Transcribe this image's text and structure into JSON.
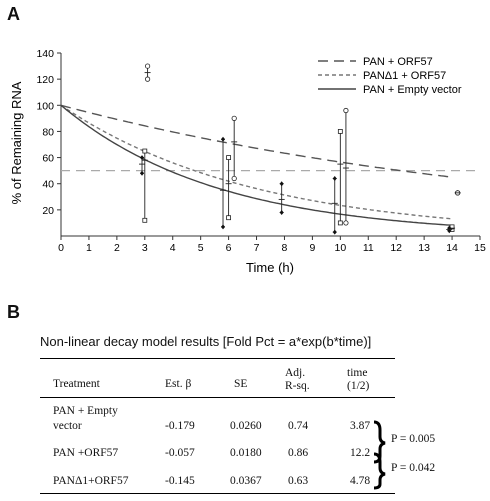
{
  "panel_a_label": "A",
  "panel_b_label": "B",
  "chart_data": {
    "type": "line",
    "xlabel": "Time (h)",
    "ylabel": "% of Remaining RNA",
    "xlim": [
      0,
      15
    ],
    "ylim": [
      0,
      140
    ],
    "xticks": [
      "0",
      "1",
      "2",
      "3",
      "4",
      "5",
      "6",
      "7",
      "8",
      "9",
      "10",
      "11",
      "12",
      "13",
      "14",
      "15"
    ],
    "yticks": [
      "20",
      "40",
      "60",
      "80",
      "100",
      "120",
      "140"
    ],
    "legend_position": "top-right",
    "reference_line": {
      "y": 50,
      "style": "dashed",
      "color": "#aaaaaa"
    },
    "series": [
      {
        "name": "PAN + ORF57",
        "style": "long-dash",
        "color": "#555555",
        "fit_decay_rate": -0.057,
        "points": [
          {
            "x": 3.1,
            "y": 125,
            "lo": 120,
            "hi": 130,
            "marker": "circle"
          },
          {
            "x": 6.2,
            "y": 72,
            "lo": 44,
            "hi": 90,
            "marker": "circle"
          },
          {
            "x": 10.2,
            "y": 52,
            "lo": 10,
            "hi": 96,
            "marker": "circle"
          },
          {
            "x": 14.2,
            "y": 33,
            "lo": 33,
            "hi": 33,
            "marker": "circle"
          }
        ]
      },
      {
        "name": "PANΔ1 + ORF57",
        "style": "short-dash",
        "color": "#777777",
        "fit_decay_rate": -0.145,
        "points": [
          {
            "x": 3.0,
            "y": 58,
            "lo": 12,
            "hi": 65,
            "marker": "square"
          },
          {
            "x": 6.0,
            "y": 40,
            "lo": 14,
            "hi": 60,
            "marker": "square"
          },
          {
            "x": 10.0,
            "y": 55,
            "lo": 10,
            "hi": 80,
            "marker": "square"
          },
          {
            "x": 14.0,
            "y": 6,
            "lo": 5,
            "hi": 7,
            "marker": "square"
          }
        ]
      },
      {
        "name": "PAN + Empty vector",
        "style": "solid",
        "color": "#444444",
        "fit_decay_rate": -0.179,
        "points": [
          {
            "x": 2.9,
            "y": 55,
            "lo": 48,
            "hi": 60,
            "marker": "diamond"
          },
          {
            "x": 5.8,
            "y": 35,
            "lo": 7,
            "hi": 74,
            "marker": "diamond"
          },
          {
            "x": 7.9,
            "y": 28,
            "lo": 18,
            "hi": 40,
            "marker": "diamond"
          },
          {
            "x": 9.8,
            "y": 25,
            "lo": 3,
            "hi": 44,
            "marker": "diamond"
          },
          {
            "x": 13.9,
            "y": 5,
            "lo": 4,
            "hi": 6,
            "marker": "diamond"
          }
        ]
      }
    ]
  },
  "table": {
    "title": "Non-linear decay model results [Fold Pct = a*exp(b*time)]",
    "headers": {
      "treatment": "Treatment",
      "beta": "Est. β",
      "se": "SE",
      "rsq_line1": "Adj.",
      "rsq_line2": "R-sq.",
      "half_line1": "time",
      "half_line2": "(1/2)"
    },
    "rows": [
      {
        "treatment_line1": "PAN + Empty",
        "treatment_line2": "vector",
        "beta": "-0.179",
        "se": "0.0260",
        "rsq": "0.74",
        "half": "3.87"
      },
      {
        "treatment_line1": "PAN +ORF57",
        "treatment_line2": "",
        "beta": "-0.057",
        "se": "0.0180",
        "rsq": "0.86",
        "half": "12.2"
      },
      {
        "treatment_line1": "PANΔ1+ORF57",
        "treatment_line2": "",
        "beta": "-0.145",
        "se": "0.0367",
        "rsq": "0.63",
        "half": "4.78"
      }
    ],
    "p_values": [
      "P = 0.005",
      "P = 0.042"
    ]
  }
}
